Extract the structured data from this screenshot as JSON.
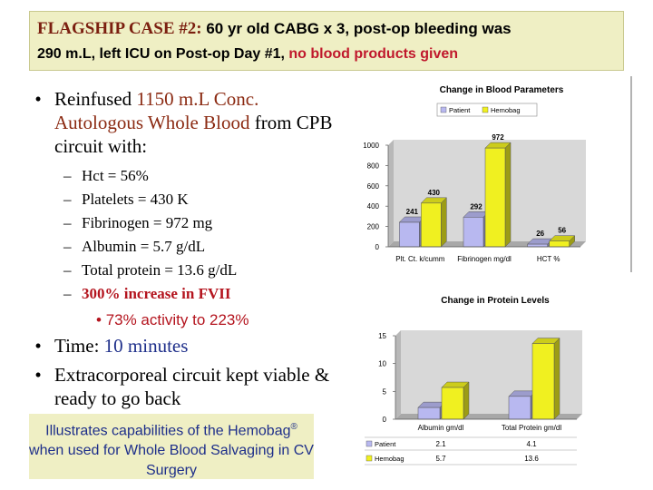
{
  "banner": {
    "tag": "FLAGSHIP  CASE #2:",
    "line1_rest": " 60 yr old CABG x 3, post-op bleeding was",
    "line2_a": "290 m.L, left ICU on Post-op Day #1, ",
    "line2_b": "no blood products given"
  },
  "bullet1": {
    "a": "Reinfused ",
    "b": "1150 m.L Conc. Autologous Whole Blood",
    "c": " from CPB circuit with:"
  },
  "subitems": [
    "Hct = 56%",
    "Platelets = 430 K",
    "Fibrinogen = 972 mg",
    "Albumin = 5.7 g/dL",
    "Total protein = 13.6 g/dL",
    "300% increase in FVII"
  ],
  "subsub": "73% activity to 223%",
  "bullet2": {
    "a": "Time: ",
    "b": "10 minutes"
  },
  "bullet3": "Extracorporeal circuit kept viable & ready to go back",
  "note": {
    "a": "Illustrates capabilities of the Hemobag",
    "mark": "®",
    "b": " when used for Whole Blood Salvaging in CV Surgery"
  },
  "chart_data": [
    {
      "type": "bar",
      "title": "Change in Blood Parameters",
      "categories": [
        "Plt. Ct. k/cumm",
        "Fibrinogen mg/dl",
        "HCT %"
      ],
      "series": [
        {
          "name": "Patient",
          "values": [
            241,
            292,
            26
          ],
          "color": "#b8b8f0"
        },
        {
          "name": "Hemobag",
          "values": [
            430,
            972,
            56
          ],
          "color": "#f0f020"
        }
      ],
      "yticks": [
        "0",
        "200",
        "400",
        "600",
        "800",
        "1000"
      ],
      "ylim": [
        0,
        1000
      ]
    },
    {
      "type": "bar",
      "title": "Change in Protein Levels",
      "categories": [
        "Albumin gm/dl",
        "Total Protein gm/dl"
      ],
      "series": [
        {
          "name": "Patient",
          "values": [
            2.1,
            4.1
          ],
          "value_labels": [
            "2.1",
            "4.1"
          ],
          "color": "#b8b8f0"
        },
        {
          "name": "Hemobag",
          "values": [
            5.7,
            13.6
          ],
          "value_labels": [
            "5.7",
            "13.6"
          ],
          "color": "#f0f020"
        }
      ],
      "yticks": [
        "0",
        "5",
        "10",
        "15"
      ],
      "ylim": [
        0,
        15
      ],
      "legend_as_table": true
    }
  ]
}
